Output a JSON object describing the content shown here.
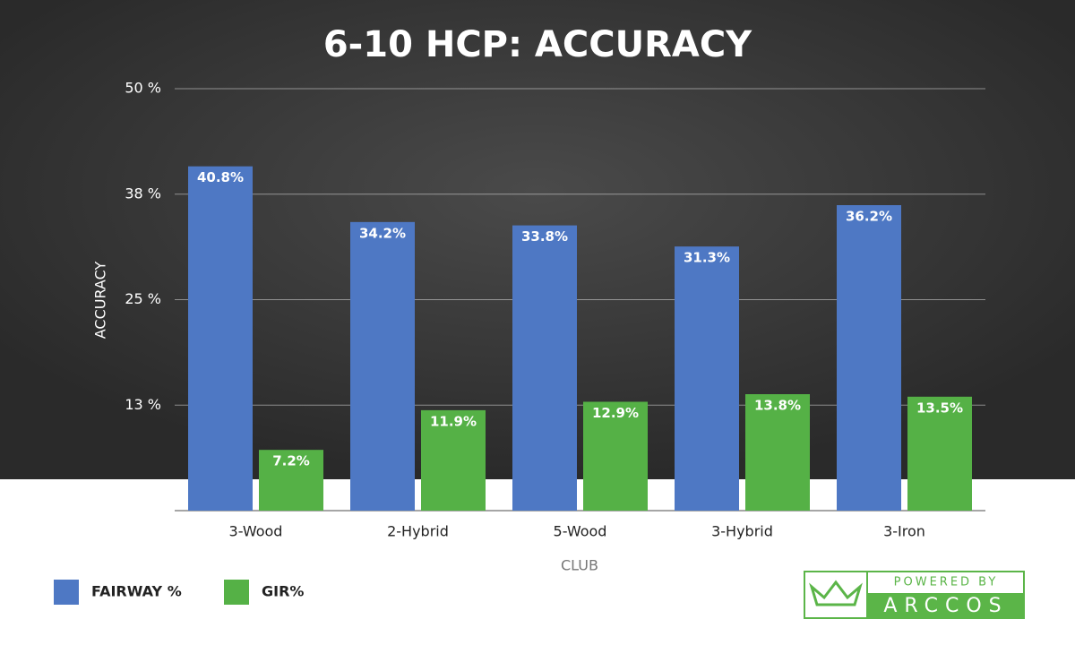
{
  "chart_data": {
    "type": "bar",
    "title": "6-10 HCP: ACCURACY",
    "y_label": "ACCURACY",
    "x_label": "CLUB",
    "categories": [
      "3-Wood",
      "2-Hybrid",
      "5-Wood",
      "3-Hybrid",
      "3-Iron"
    ],
    "series": [
      {
        "name": "FAIRWAY %",
        "color": "#4e78c4",
        "values": [
          40.8,
          34.2,
          33.8,
          31.3,
          36.2
        ],
        "value_labels": [
          "40.8%",
          "34.2%",
          "33.8%",
          "31.3%",
          "36.2%"
        ]
      },
      {
        "name": "GIR%",
        "color": "#55b146",
        "values": [
          7.2,
          11.9,
          12.9,
          13.8,
          13.5
        ],
        "value_labels": [
          "7.2%",
          "11.9%",
          "12.9%",
          "13.8%",
          "13.5%"
        ]
      }
    ],
    "ylim": [
      0,
      50
    ],
    "yticks": [
      {
        "value": 12.5,
        "label": "13 %"
      },
      {
        "value": 25,
        "label": "25 %"
      },
      {
        "value": 37.5,
        "label": "38 %"
      },
      {
        "value": 50,
        "label": "50 %"
      }
    ],
    "grid": true
  },
  "logo": {
    "top": "POWERED BY",
    "bottom": "ARCCOS"
  }
}
